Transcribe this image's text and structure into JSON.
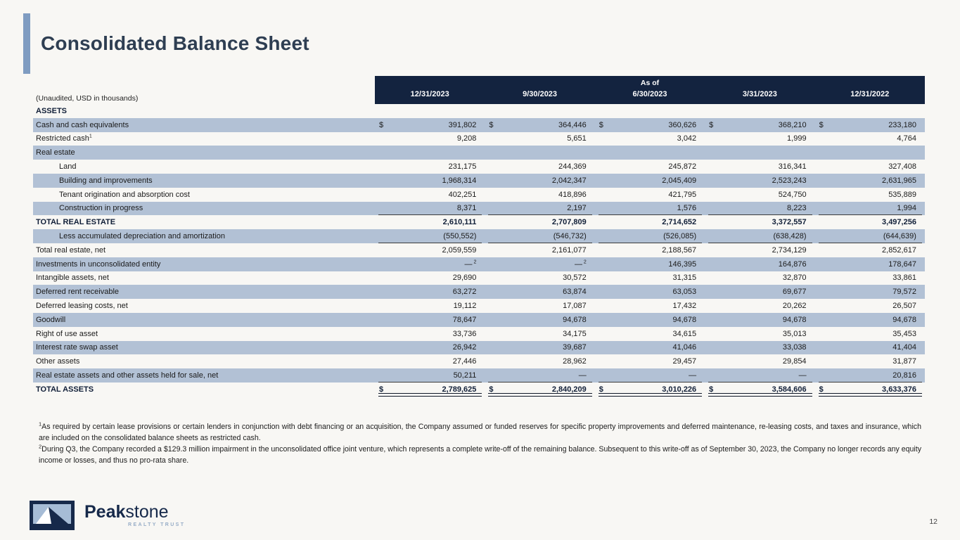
{
  "slide": {
    "title": "Consolidated Balance Sheet",
    "page_number": "12"
  },
  "colors": {
    "header_navy": "#13233f",
    "row_shade": "#b2c1d5",
    "accent_bar": "#7f9cc1",
    "title_text": "#2e3e52"
  },
  "table": {
    "unaudited_note": "(Unaudited, USD in thousands)",
    "as_of_label": "As of",
    "columns": [
      "12/31/2023",
      "9/30/2023",
      "6/30/2023",
      "3/31/2023",
      "12/31/2022"
    ],
    "rows": [
      {
        "name": "row-assets-header",
        "label": "ASSETS",
        "bold": true,
        "shaded": false
      },
      {
        "name": "row-cash",
        "label": "Cash and cash equivalents",
        "shaded": true,
        "dollar": true,
        "values": [
          "391,802",
          "364,446",
          "360,626",
          "368,210",
          "233,180"
        ]
      },
      {
        "name": "row-restricted-cash",
        "label": "Restricted cash",
        "label_sup": "1",
        "shaded": false,
        "values": [
          "9,208",
          "5,651",
          "3,042",
          "1,999",
          "4,764"
        ]
      },
      {
        "name": "row-real-estate",
        "label": "Real estate",
        "shaded": true
      },
      {
        "name": "row-land",
        "label": "Land",
        "indent": 1,
        "shaded": false,
        "values": [
          "231,175",
          "244,369",
          "245,872",
          "316,341",
          "327,408"
        ]
      },
      {
        "name": "row-building",
        "label": "Building and improvements",
        "indent": 1,
        "shaded": true,
        "values": [
          "1,968,314",
          "2,042,347",
          "2,045,409",
          "2,523,243",
          "2,631,965"
        ]
      },
      {
        "name": "row-tenant-origination",
        "label": "Tenant origination and absorption cost",
        "indent": 1,
        "shaded": false,
        "values": [
          "402,251",
          "418,896",
          "421,795",
          "524,750",
          "535,889"
        ]
      },
      {
        "name": "row-construction",
        "label": "Construction in progress",
        "indent": 1,
        "shaded": true,
        "underline": "single",
        "values": [
          "8,371",
          "2,197",
          "1,576",
          "8,223",
          "1,994"
        ]
      },
      {
        "name": "row-total-real-estate",
        "label": "TOTAL REAL ESTATE",
        "bold": true,
        "shaded": false,
        "values": [
          "2,610,111",
          "2,707,809",
          "2,714,652",
          "3,372,557",
          "3,497,256"
        ]
      },
      {
        "name": "row-less-depreciation",
        "label": "Less accumulated depreciation and amortization",
        "indent": 1,
        "shaded": true,
        "underline": "single",
        "values": [
          "(550,552)",
          "(546,732)",
          "(526,085)",
          "(638,428)",
          "(644,639)"
        ]
      },
      {
        "name": "row-total-real-estate-net",
        "label": "Total real estate, net",
        "shaded": false,
        "values": [
          "2,059,559",
          "2,161,077",
          "2,188,567",
          "2,734,129",
          "2,852,617"
        ]
      },
      {
        "name": "row-investments-unconsolidated",
        "label": "Investments in unconsolidated entity",
        "shaded": true,
        "values": [
          "—",
          "—",
          "146,395",
          "164,876",
          "178,647"
        ],
        "value_sups": [
          "2",
          "2",
          null,
          null,
          null
        ]
      },
      {
        "name": "row-intangible-assets",
        "label": "Intangible assets, net",
        "shaded": false,
        "values": [
          "29,690",
          "30,572",
          "31,315",
          "32,870",
          "33,861"
        ]
      },
      {
        "name": "row-deferred-rent",
        "label": "Deferred rent receivable",
        "shaded": true,
        "values": [
          "63,272",
          "63,874",
          "63,053",
          "69,677",
          "79,572"
        ]
      },
      {
        "name": "row-deferred-leasing",
        "label": "Deferred leasing costs, net",
        "shaded": false,
        "values": [
          "19,112",
          "17,087",
          "17,432",
          "20,262",
          "26,507"
        ]
      },
      {
        "name": "row-goodwill",
        "label": "Goodwill",
        "shaded": true,
        "values": [
          "78,647",
          "94,678",
          "94,678",
          "94,678",
          "94,678"
        ]
      },
      {
        "name": "row-right-of-use",
        "label": "Right of use asset",
        "shaded": false,
        "values": [
          "33,736",
          "34,175",
          "34,615",
          "35,013",
          "35,453"
        ]
      },
      {
        "name": "row-interest-rate-swap",
        "label": "Interest rate swap asset",
        "shaded": true,
        "values": [
          "26,942",
          "39,687",
          "41,046",
          "33,038",
          "41,404"
        ]
      },
      {
        "name": "row-other-assets",
        "label": "Other assets",
        "shaded": false,
        "values": [
          "27,446",
          "28,962",
          "29,457",
          "29,854",
          "31,877"
        ]
      },
      {
        "name": "row-held-for-sale",
        "label": "Real estate assets and other assets held for sale, net",
        "shaded": true,
        "underline": "single",
        "values": [
          "50,211",
          "—",
          "—",
          "—",
          "20,816"
        ]
      },
      {
        "name": "row-total-assets",
        "label": "TOTAL ASSETS",
        "bold": true,
        "shaded": false,
        "dollar": true,
        "underline": "double",
        "values": [
          "2,789,625",
          "2,840,209",
          "3,010,226",
          "3,584,606",
          "3,633,376"
        ]
      }
    ]
  },
  "footnotes": [
    {
      "sup": "1",
      "text": "As required by certain lease provisions or certain lenders in conjunction with debt financing or an acquisition, the Company assumed or funded reserves for specific property improvements and deferred maintenance, re-leasing costs, and taxes and insurance, which are included on the consolidated balance sheets as restricted cash."
    },
    {
      "sup": "2",
      "text": "During Q3, the Company recorded a $129.3 million impairment in the unconsolidated office joint venture, which represents a complete write-off of the remaining balance. Subsequent to this write-off as of September 30, 2023, the Company no longer records any equity income or losses, and thus no pro-rata share."
    }
  ],
  "logo": {
    "brand_bold": "Peak",
    "brand_light": "stone",
    "tagline": "REALTY TRUST"
  }
}
